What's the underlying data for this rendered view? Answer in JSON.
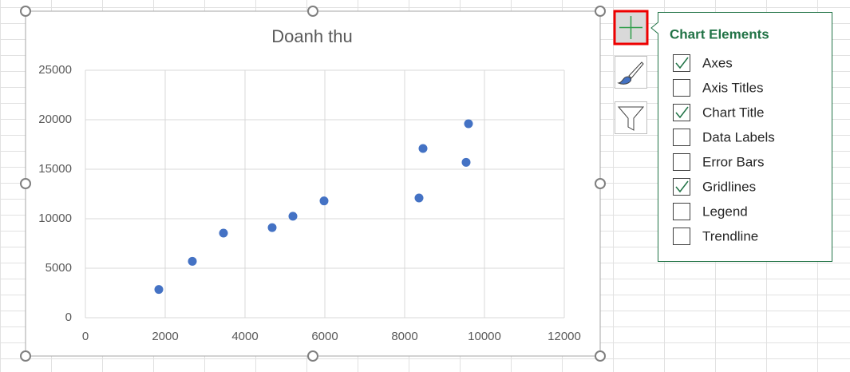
{
  "chart_data": {
    "type": "scatter",
    "title": "Doanh thu",
    "x": [
      1840,
      2680,
      3460,
      4680,
      5200,
      5980,
      8360,
      8460,
      9540,
      9600
    ],
    "values": [
      2850,
      5700,
      8550,
      9100,
      10250,
      11800,
      12100,
      17100,
      15700,
      19600
    ],
    "color": "#4472c4",
    "xlim": [
      0,
      12000
    ],
    "xticks": [
      0,
      2000,
      4000,
      6000,
      8000,
      10000,
      12000
    ],
    "ylim": [
      0,
      25000
    ],
    "yticks": [
      0,
      5000,
      10000,
      15000,
      20000,
      25000
    ],
    "grid": true
  },
  "panel": {
    "title": "Chart Elements",
    "items": [
      {
        "label": "Axes",
        "checked": true
      },
      {
        "label": "Axis Titles",
        "checked": false
      },
      {
        "label": "Chart Title",
        "checked": true
      },
      {
        "label": "Data Labels",
        "checked": false
      },
      {
        "label": "Error Bars",
        "checked": false
      },
      {
        "label": "Gridlines",
        "checked": true
      },
      {
        "label": "Legend",
        "checked": false
      },
      {
        "label": "Trendline",
        "checked": false
      }
    ]
  }
}
